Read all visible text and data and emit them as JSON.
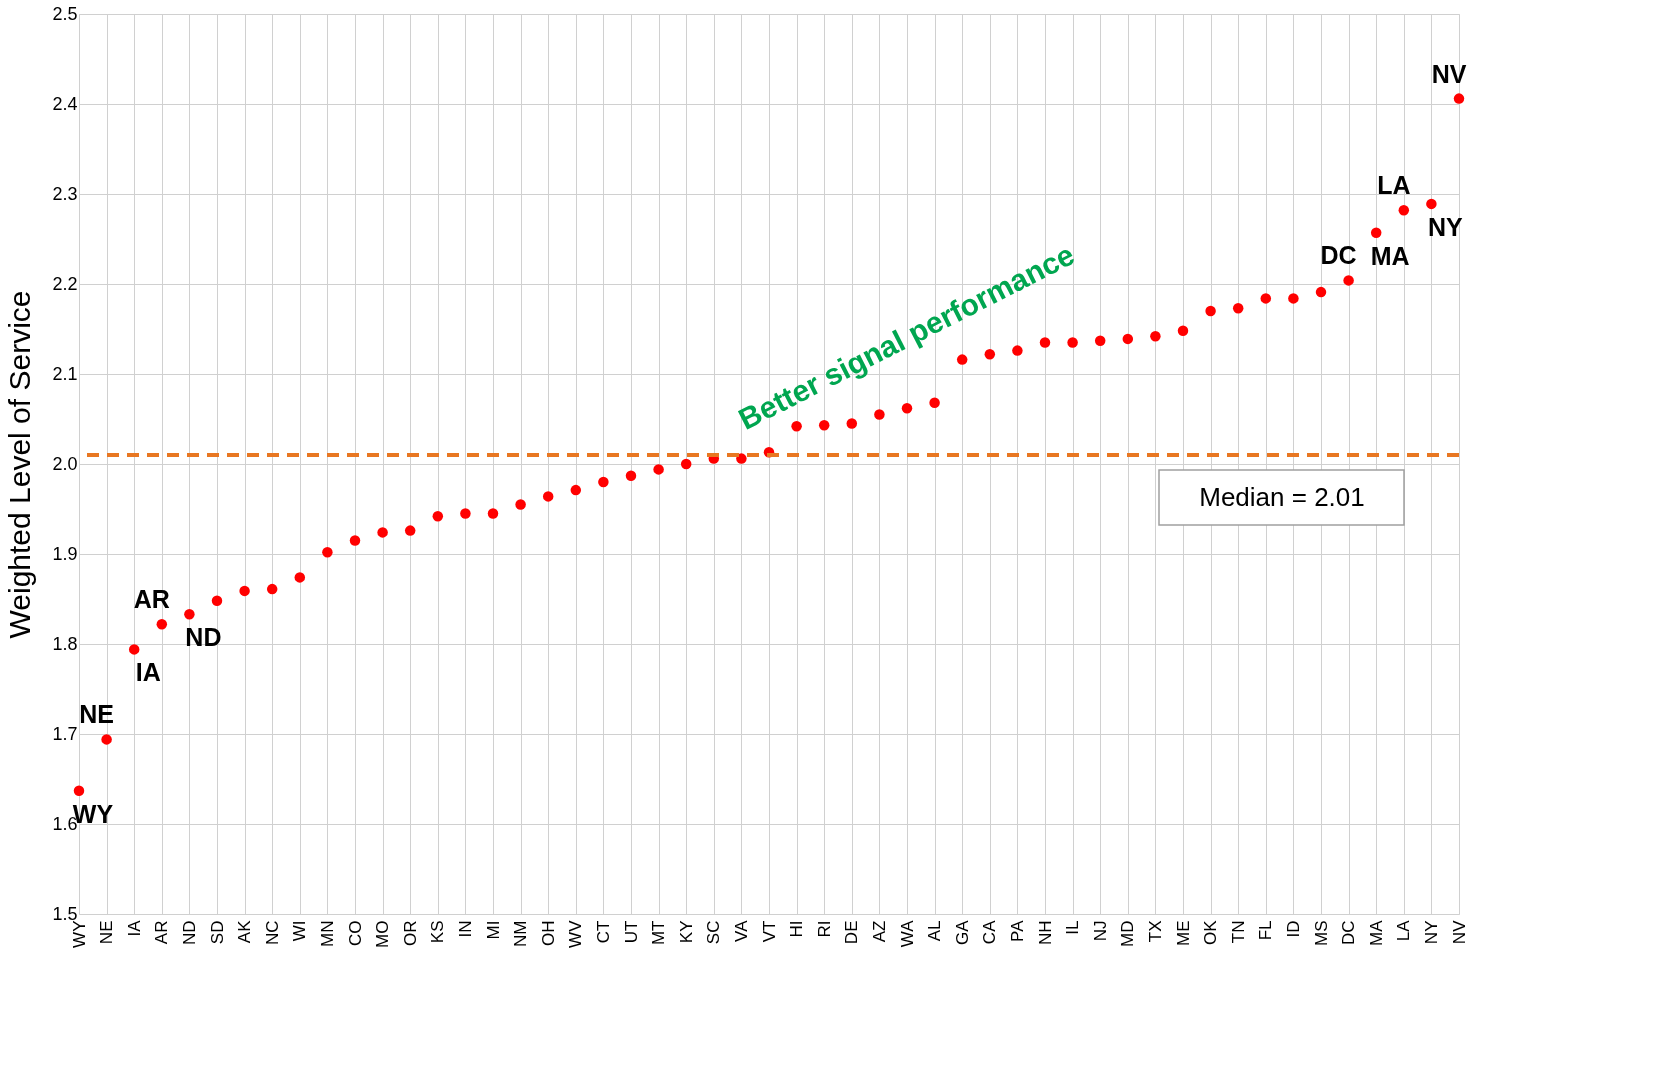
{
  "chart_data": {
    "type": "scatter",
    "ylabel": "Weighted Level of Service",
    "categories": [
      "WY",
      "NE",
      "IA",
      "AR",
      "ND",
      "SD",
      "AK",
      "NC",
      "WI",
      "MN",
      "CO",
      "MO",
      "OR",
      "KS",
      "IN",
      "MI",
      "NM",
      "OH",
      "WV",
      "CT",
      "UT",
      "MT",
      "KY",
      "SC",
      "VA",
      "VT",
      "HI",
      "RI",
      "DE",
      "AZ",
      "WA",
      "AL",
      "GA",
      "CA",
      "PA",
      "NH",
      "IL",
      "NJ",
      "MD",
      "TX",
      "ME",
      "OK",
      "TN",
      "FL",
      "ID",
      "MS",
      "DC",
      "MA",
      "LA",
      "NY",
      "NV"
    ],
    "series": [
      {
        "color": "#ff0000",
        "values": [
          1.637,
          1.694,
          1.794,
          1.822,
          1.833,
          1.848,
          1.859,
          1.861,
          1.874,
          1.902,
          1.915,
          1.924,
          1.926,
          1.942,
          1.945,
          1.945,
          1.955,
          1.964,
          1.971,
          1.98,
          1.987,
          1.994,
          2.0,
          2.006,
          2.006,
          2.013,
          2.042,
          2.043,
          2.045,
          2.055,
          2.062,
          2.068,
          2.116,
          2.122,
          2.126,
          2.135,
          2.135,
          2.137,
          2.139,
          2.142,
          2.148,
          2.17,
          2.173,
          2.184,
          2.184,
          2.191,
          2.204,
          2.257,
          2.282,
          2.289,
          2.406
        ]
      }
    ],
    "ylim": [
      1.5,
      2.5
    ],
    "yticks": [
      1.5,
      1.6,
      1.7,
      1.8,
      1.9,
      {
        "value": 2,
        "label": "2.0"
      },
      2.1,
      2.2,
      2.3,
      2.4,
      2.5
    ],
    "grid": true,
    "marker": "circle",
    "ref_lines": [
      {
        "axis": "y",
        "value": 2.01,
        "label": "Median = 2.01",
        "color": "#e87722",
        "line_style": "dashed"
      }
    ],
    "annotations": [
      {
        "text": "WY",
        "x": "WY",
        "y": 1.637
      },
      {
        "text": "NE",
        "x": "NE",
        "y": 1.694
      },
      {
        "text": "IA",
        "x": "IA",
        "y": 1.794
      },
      {
        "text": "AR",
        "x": "AR",
        "y": 1.822
      },
      {
        "text": "ND",
        "x": "ND",
        "y": 1.833
      },
      {
        "text": "DC",
        "x": "DC",
        "y": 2.204
      },
      {
        "text": "MA",
        "x": "MA",
        "y": 2.257
      },
      {
        "text": "LA",
        "x": "LA",
        "y": 2.282
      },
      {
        "text": "NY",
        "x": "NY",
        "y": 2.289
      },
      {
        "text": "NV",
        "x": "NV",
        "y": 2.406
      },
      "Better signal performance"
    ]
  }
}
